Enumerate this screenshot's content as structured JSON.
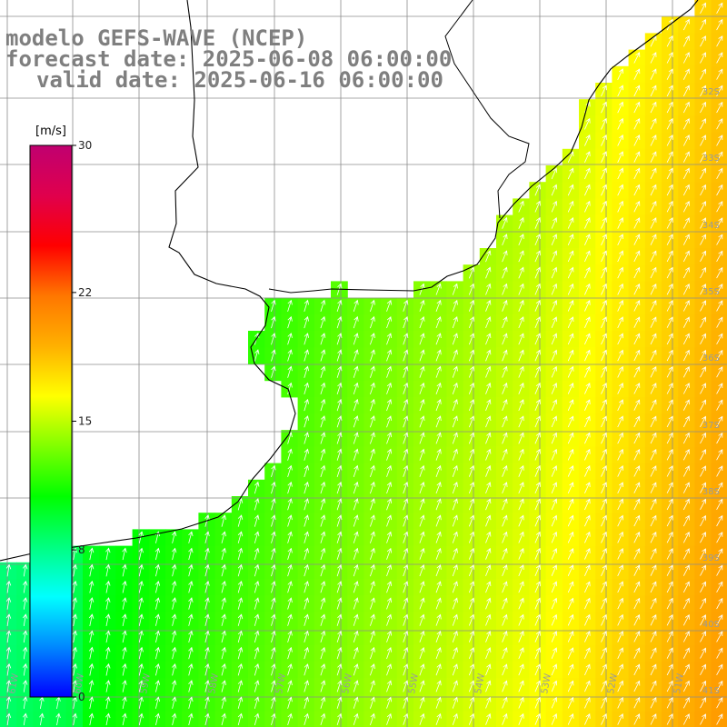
{
  "title": {
    "line1": "modelo GEFS-WAVE (NCEP)",
    "line2": "forecast date: 2025-06-08 06:00:00",
    "line3": "valid date: 2025-06-16 06:00:00"
  },
  "colorbar": {
    "unit": "[m/s]",
    "min": 0,
    "max": 30,
    "ticks": [
      "30",
      "22",
      "15",
      "8",
      "0"
    ],
    "tick_values": [
      30,
      22,
      15,
      8,
      0
    ],
    "colors": [
      "#0000ff",
      "#0088ff",
      "#00ffff",
      "#00ff80",
      "#00ff00",
      "#80ff00",
      "#ffff00",
      "#ffb000",
      "#ff7700",
      "#ff0000",
      "#e0004d",
      "#c00070"
    ]
  },
  "map": {
    "lon_labels": [
      "61W",
      "60W",
      "59W",
      "58W",
      "57W",
      "56W",
      "55W",
      "54W",
      "53W",
      "52W",
      "51W"
    ],
    "lat_labels": [
      "32S",
      "33S",
      "34S",
      "35S",
      "36S",
      "37S",
      "38S",
      "39S",
      "40S",
      "41S"
    ],
    "field": "wind speed",
    "arrow_color": "#ffffff",
    "coast_color": "#000000",
    "grid_color": "#8c8c8c"
  }
}
